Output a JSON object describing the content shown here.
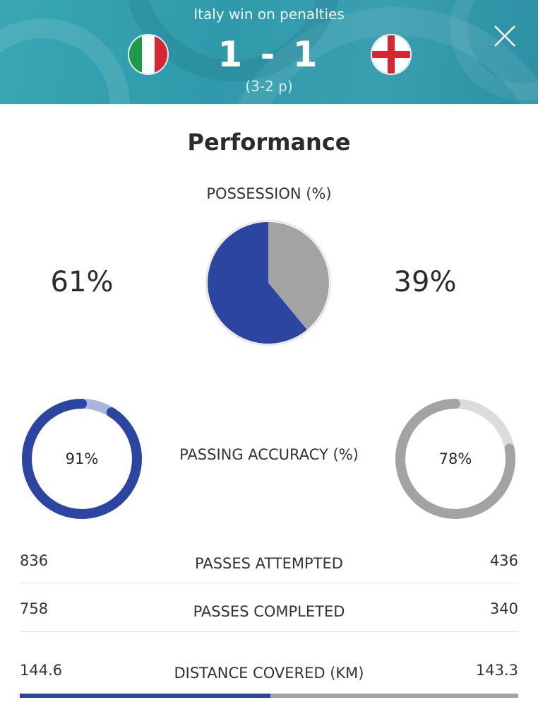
{
  "header": {
    "result_text": "Italy win on penalties",
    "score": "1 - 1",
    "penalties": "(3-2 p)",
    "home_flag": "italy-flag",
    "away_flag": "england-flag",
    "close_icon": "close-icon"
  },
  "performance": {
    "title": "Performance",
    "possession": {
      "label": "POSSESSION (%)",
      "home_text": "61%",
      "away_text": "39%",
      "home_value": 61,
      "away_value": 39
    },
    "passing_accuracy": {
      "label": "PASSING ACCURACY (%)",
      "home_text": "91%",
      "away_text": "78%",
      "home_value": 91,
      "away_value": 78
    },
    "stats": [
      {
        "label": "PASSES ATTEMPTED",
        "home": "836",
        "away": "436"
      },
      {
        "label": "PASSES COMPLETED",
        "home": "758",
        "away": "340"
      },
      {
        "label": "DISTANCE COVERED (KM)",
        "home": "144.6",
        "away": "143.3"
      }
    ],
    "distance_home_value": 144.6,
    "distance_away_value": 143.3
  },
  "colors": {
    "home": "#2c45a0",
    "home_light": "#a9b5dc",
    "away": "#a3a3a3",
    "away_light": "#dcdcdc",
    "header_bg": "#3aa7b4"
  }
}
